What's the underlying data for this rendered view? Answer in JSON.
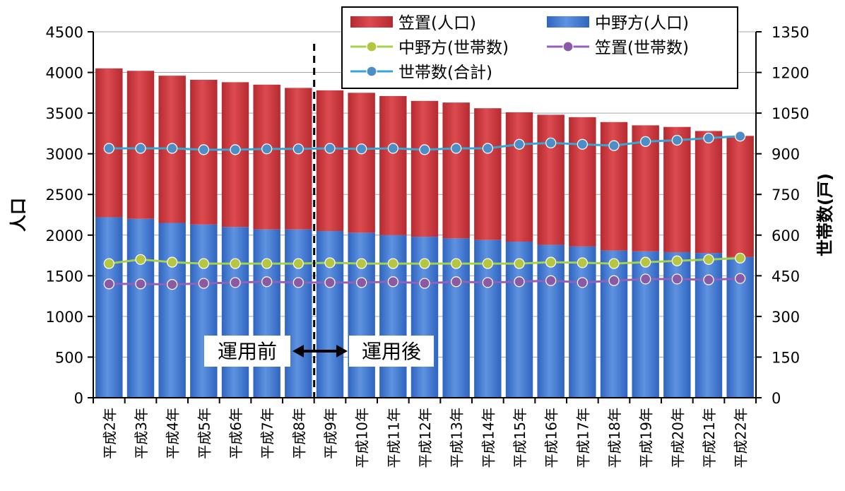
{
  "chart_data": {
    "type": "bar",
    "stacked": true,
    "title": "",
    "categories": [
      "平成2年",
      "平成3年",
      "平成4年",
      "平成5年",
      "平成6年",
      "平成7年",
      "平成8年",
      "平成9年",
      "平成10年",
      "平成11年",
      "平成12年",
      "平成13年",
      "平成14年",
      "平成15年",
      "平成16年",
      "平成17年",
      "平成18年",
      "平成19年",
      "平成20年",
      "平成21年",
      "平成22年"
    ],
    "y_left": {
      "label": "人口",
      "min": 0,
      "max": 4500,
      "ticks": [
        0,
        500,
        1000,
        1500,
        2000,
        2500,
        3000,
        3500,
        4000,
        4500
      ]
    },
    "y_right": {
      "label": "世帯数(戸)",
      "min": 0,
      "max": 1350,
      "ticks": [
        0,
        150,
        300,
        450,
        600,
        750,
        900,
        1050,
        1200,
        1350
      ]
    },
    "bar_series": [
      {
        "name": "中野方(人口)",
        "color": "#4a7fd4",
        "axis": "left",
        "values": [
          2220,
          2200,
          2150,
          2130,
          2100,
          2070,
          2070,
          2050,
          2030,
          2000,
          1980,
          1960,
          1940,
          1920,
          1880,
          1860,
          1810,
          1800,
          1790,
          1780,
          1730
        ]
      },
      {
        "name": "笠置(人口)",
        "color": "#d0393f",
        "axis": "left",
        "values": [
          1830,
          1820,
          1810,
          1780,
          1780,
          1780,
          1740,
          1730,
          1720,
          1710,
          1670,
          1670,
          1620,
          1590,
          1600,
          1590,
          1580,
          1550,
          1540,
          1500,
          1490
        ]
      }
    ],
    "line_series": [
      {
        "name": "中野方(世帯数)",
        "color": "#a6d14a",
        "marker": "#b7c640",
        "axis": "right",
        "values": [
          495,
          510,
          500,
          495,
          495,
          495,
          495,
          498,
          495,
          495,
          495,
          495,
          495,
          495,
          500,
          498,
          495,
          500,
          505,
          510,
          515
        ]
      },
      {
        "name": "笠置(世帯数)",
        "color": "#9460b8",
        "marker": "#8a5aa6",
        "axis": "right",
        "values": [
          420,
          420,
          418,
          422,
          425,
          428,
          425,
          425,
          425,
          428,
          422,
          428,
          425,
          428,
          432,
          425,
          432,
          438,
          438,
          435,
          440
        ]
      },
      {
        "name": "世帯数(合計)",
        "color": "#38a6d4",
        "marker": "#4e8ec6",
        "axis": "right",
        "values": [
          920,
          920,
          920,
          915,
          915,
          918,
          918,
          920,
          918,
          920,
          915,
          920,
          920,
          935,
          940,
          935,
          930,
          945,
          950,
          958,
          965
        ]
      }
    ],
    "legend": {
      "placement": "top-center",
      "items": [
        {
          "label": "笠置(人口)",
          "kind": "bar",
          "color": "#d0393f"
        },
        {
          "label": "中野方(人口)",
          "kind": "bar",
          "color": "#4a7fd4"
        },
        {
          "label": "中野方(世帯数)",
          "kind": "line",
          "color": "#a6d14a",
          "marker": "#b7c640"
        },
        {
          "label": "笠置(世帯数)",
          "kind": "line",
          "color": "#9460b8",
          "marker": "#8a5aa6"
        },
        {
          "label": "世帯数(合計)",
          "kind": "line",
          "color": "#38a6d4",
          "marker": "#4e8ec6"
        }
      ]
    },
    "annotation": {
      "before_label": "運用前",
      "after_label": "運用後",
      "divider_between": [
        "平成8年",
        "平成9年"
      ]
    },
    "grid": true
  }
}
